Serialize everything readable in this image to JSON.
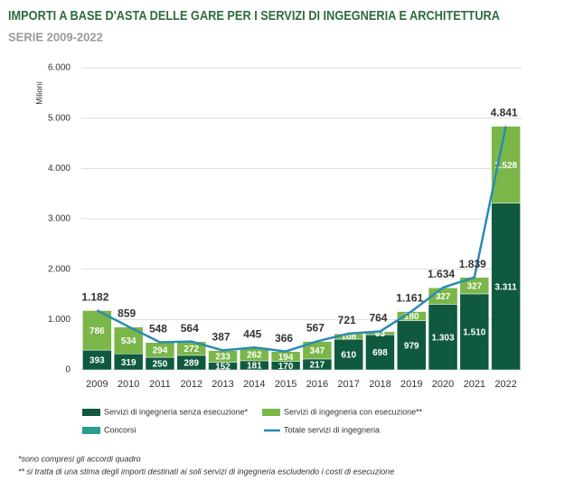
{
  "chart_data": {
    "type": "bar",
    "title": "IMPORTI A BASE D'ASTA DELLE GARE PER I SERVIZI DI INGEGNERIA E ARCHITETTURA",
    "subtitle": "SERIE 2009-2022",
    "y_label": "Milioni",
    "categories": [
      "2009",
      "2010",
      "2011",
      "2012",
      "2013",
      "2014",
      "2015",
      "2016",
      "2017",
      "2018",
      "2019",
      "2020",
      "2021",
      "2022"
    ],
    "stacked": true,
    "grid": true,
    "ylim": [
      0,
      6000
    ],
    "yticks": [
      0,
      {
        "value": 1000,
        "label": "1.000"
      },
      {
        "value": 2000,
        "label": "2.000"
      },
      {
        "value": 3000,
        "label": "3.000"
      },
      {
        "value": 4000,
        "label": "4.000"
      },
      {
        "value": 5000,
        "label": "5.000"
      },
      {
        "value": 6000,
        "label": "6.000"
      }
    ],
    "series": [
      {
        "name": "Servizi di ingegneria senza esecuzione*",
        "type": "bar",
        "color": "#0f5a3e",
        "values": [
          393,
          319,
          250,
          289,
          152,
          181,
          170,
          217,
          610,
          698,
          979,
          1303,
          1510,
          3311
        ],
        "value_labels": [
          "393",
          "319",
          "250",
          "289",
          "152",
          "181",
          "170",
          "217",
          "610",
          "698",
          "979",
          "1.303",
          "1.510",
          "3.311"
        ]
      },
      {
        "name": "Servizi di ingegneria con esecuzione**",
        "type": "bar",
        "color": "#7ab648",
        "values": [
          786,
          534,
          294,
          272,
          233,
          262,
          194,
          347,
          108,
          63,
          180,
          327,
          327,
          1528
        ],
        "value_labels": [
          "786",
          "534",
          "294",
          "272",
          "233",
          "262",
          "194",
          "347",
          "108",
          "63",
          "180",
          "327",
          "327",
          "1.528"
        ]
      },
      {
        "name": "Concorsi",
        "type": "bar",
        "color": "#2a9d8f",
        "values": [
          3,
          6,
          4,
          3,
          2,
          2,
          2,
          3,
          3,
          3,
          2,
          4,
          2,
          2
        ]
      },
      {
        "name": "Totale servizi di ingegneria",
        "type": "line",
        "color": "#2a8bb5",
        "values": [
          1182,
          859,
          548,
          564,
          387,
          445,
          366,
          567,
          721,
          764,
          1161,
          1634,
          1839,
          4841
        ],
        "value_labels": [
          "1.182",
          "859",
          "548",
          "564",
          "387",
          "445",
          "366",
          "567",
          "721",
          "764",
          "1.161",
          "1.634",
          "1.839",
          "4.841"
        ]
      }
    ],
    "notes": [
      "*sono compresi gli accordi quadro",
      "** si tratta di una stima degli importi destinati ai soli servizi di ingegneria escludendo i costi di esecuzione"
    ]
  }
}
